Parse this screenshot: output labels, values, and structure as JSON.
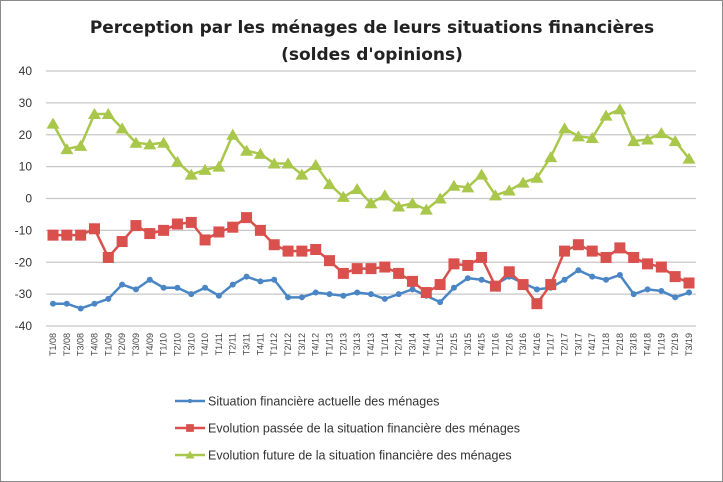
{
  "chart_data": {
    "type": "line",
    "title": "Perception par les ménages de leurs situations financières",
    "subtitle": "(soldes d'opinions)",
    "xlabel": "",
    "ylabel": "",
    "ylim": [
      -40,
      40
    ],
    "yticks": [
      "40",
      "30",
      "20",
      "10",
      "0",
      "-10",
      "-20",
      "-30",
      "-40"
    ],
    "grid": true,
    "legend_placement": "bottom",
    "categories": [
      "T1/08",
      "T2/08",
      "T3/08",
      "T4/08",
      "T1/09",
      "T2/09",
      "T3/09",
      "T4/09",
      "T1/10",
      "T2/10",
      "T3/10",
      "T4/10",
      "T1/11",
      "T2/11",
      "T3/11",
      "T4/11",
      "T1/12",
      "T2/12",
      "T3/12",
      "T4/12",
      "T1/13",
      "T2/13",
      "T3/13",
      "T4/13",
      "T1/14",
      "T2/14",
      "T3/14",
      "T4/14",
      "T1/15",
      "T2/15",
      "T3/15",
      "T4/15",
      "T1/16",
      "T2/16",
      "T3/16",
      "T4/16",
      "T1/17",
      "T2/17",
      "T3/17",
      "T4/17",
      "T1/18",
      "T2/18",
      "T3/18",
      "T4/18",
      "T1/19",
      "T2/19",
      "T3/19"
    ],
    "series": [
      {
        "name": "Situation financière  actuelle des ménages",
        "color": "#4a86c5",
        "marker": "circle",
        "values": [
          -33,
          -33,
          -34.5,
          -33,
          -31.5,
          -27,
          -28.5,
          -25.5,
          -28,
          -28,
          -30,
          -28,
          -30.5,
          -27,
          -24.5,
          -26,
          -25.5,
          -31,
          -31,
          -29.5,
          -30,
          -30.5,
          -29.5,
          -30,
          -31.5,
          -30,
          -28.5,
          -30.5,
          -32.5,
          -28,
          -25,
          -25.5,
          -27,
          -24.5,
          -26.5,
          -28.5,
          -28,
          -25.5,
          -22.5,
          -24.5,
          -25.5,
          -24,
          -30,
          -28.5,
          -29,
          -31,
          -29.5
        ]
      },
      {
        "name": "Evolution  passée de la situation financière des ménages",
        "color": "#d9504d",
        "marker": "square",
        "values": [
          -11.5,
          -11.5,
          -11.5,
          -9.5,
          -18.5,
          -13.5,
          -8.5,
          -11,
          -10,
          -8,
          -7.5,
          -13,
          -10.5,
          -9,
          -6,
          -10,
          -14.5,
          -16.5,
          -16.5,
          -16,
          -19.5,
          -23.5,
          -22,
          -22,
          -21.5,
          -23.5,
          -26,
          -29.5,
          -27,
          -20.5,
          -21,
          -18.5,
          -27.5,
          -23,
          -27,
          -33,
          -27,
          -16.5,
          -14.5,
          -16.5,
          -18.5,
          -15.5,
          -18.5,
          -20.5,
          -21.5,
          -24.5,
          -26.5
        ]
      },
      {
        "name": "Evolution  future de la situation financière  des ménages",
        "color": "#a9c74b",
        "marker": "triangle",
        "values": [
          23.5,
          15.5,
          16.5,
          26.5,
          26.5,
          22,
          17.5,
          17,
          17.5,
          11.5,
          7.5,
          9,
          10,
          20,
          15,
          14,
          11,
          11,
          7.5,
          10.5,
          4.5,
          0.5,
          3,
          -1.5,
          1,
          -2.5,
          -1.5,
          -3.5,
          0,
          4,
          3.5,
          7.5,
          1,
          2.5,
          5,
          6.5,
          13,
          22,
          19.5,
          19,
          26,
          28,
          18,
          18.5,
          20.5,
          18,
          12.5
        ]
      }
    ]
  }
}
